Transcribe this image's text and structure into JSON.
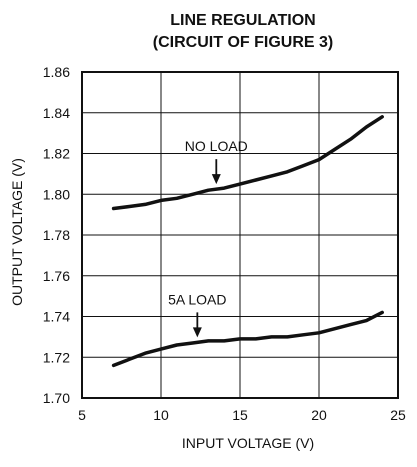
{
  "chart_data": {
    "type": "line",
    "title": "LINE REGULATION",
    "subtitle": "(CIRCUIT OF FIGURE 3)",
    "xlabel": "INPUT VOLTAGE (V)",
    "ylabel": "OUTPUT VOLTAGE (V)",
    "xlim": [
      5,
      25
    ],
    "ylim": [
      1.7,
      1.86
    ],
    "x_ticks": [
      "5",
      "10",
      "15",
      "20",
      "25"
    ],
    "y_ticks": [
      "1.70",
      "1.72",
      "1.74",
      "1.76",
      "1.78",
      "1.80",
      "1.82",
      "1.84",
      "1.86"
    ],
    "grid": true,
    "series": [
      {
        "name": "NO LOAD",
        "color": "#111111",
        "x": [
          7,
          8,
          9,
          10,
          11,
          12,
          13,
          14,
          15,
          16,
          17,
          18,
          19,
          20,
          21,
          22,
          23,
          24
        ],
        "y": [
          1.793,
          1.794,
          1.795,
          1.797,
          1.798,
          1.8,
          1.802,
          1.803,
          1.805,
          1.807,
          1.809,
          1.811,
          1.814,
          1.817,
          1.822,
          1.827,
          1.833,
          1.838
        ]
      },
      {
        "name": "5A LOAD",
        "color": "#111111",
        "x": [
          7,
          8,
          9,
          10,
          11,
          12,
          13,
          14,
          15,
          16,
          17,
          18,
          19,
          20,
          21,
          22,
          23,
          24
        ],
        "y": [
          1.716,
          1.719,
          1.722,
          1.724,
          1.726,
          1.727,
          1.728,
          1.728,
          1.729,
          1.729,
          1.73,
          1.73,
          1.731,
          1.732,
          1.734,
          1.736,
          1.738,
          1.742
        ]
      }
    ],
    "annotations": [
      {
        "text": "NO LOAD",
        "series": 0,
        "arrow_x": 13.5
      },
      {
        "text": "5A LOAD",
        "series": 1,
        "arrow_x": 12.3
      }
    ]
  }
}
